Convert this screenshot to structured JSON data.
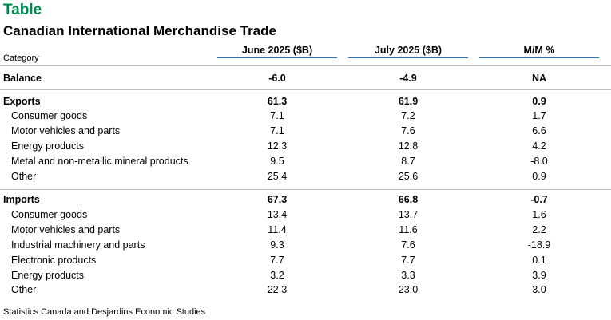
{
  "header": {
    "tag": "Table",
    "title": "Canadian International Merchandise Trade",
    "category_label": "Category"
  },
  "columns": [
    "June 2025 ($B)",
    "July 2025 ($B)",
    "M/M %"
  ],
  "rows": [
    {
      "label": "Balance",
      "june": "-6.0",
      "july": "-4.9",
      "mm": "NA",
      "bold": true
    },
    {
      "label": "Exports",
      "june": "61.3",
      "july": "61.9",
      "mm": "0.9",
      "bold": true
    },
    {
      "label": "Consumer goods",
      "june": "7.1",
      "july": "7.2",
      "mm": "1.7"
    },
    {
      "label": "Motor vehicles and parts",
      "june": "7.1",
      "july": "7.6",
      "mm": "6.6"
    },
    {
      "label": "Energy products",
      "june": "12.3",
      "july": "12.8",
      "mm": "4.2"
    },
    {
      "label": "Metal and non-metallic mineral products",
      "june": "9.5",
      "july": "8.7",
      "mm": "-8.0"
    },
    {
      "label": "Other",
      "june": "25.4",
      "july": "25.6",
      "mm": "0.9"
    },
    {
      "label": "Imports",
      "june": "67.3",
      "july": "66.8",
      "mm": "-0.7",
      "bold": true
    },
    {
      "label": "Consumer goods",
      "june": "13.4",
      "july": "13.7",
      "mm": "1.6"
    },
    {
      "label": "Motor vehicles and parts",
      "june": "11.4",
      "july": "11.6",
      "mm": "2.2"
    },
    {
      "label": "Industrial machinery and parts",
      "june": "9.3",
      "july": "7.6",
      "mm": "-18.9"
    },
    {
      "label": "Electronic products",
      "june": "7.7",
      "july": "7.7",
      "mm": "0.1"
    },
    {
      "label": "Energy products",
      "june": "3.2",
      "july": "3.3",
      "mm": "3.9"
    },
    {
      "label": "Other",
      "june": "22.3",
      "july": "23.0",
      "mm": "3.0"
    }
  ],
  "source": "Statistics Canada and Desjardins Economic Studies",
  "colors": {
    "tag": "#00874e",
    "header_rule": "#2e75b6",
    "row_rule": "#bfbfbf"
  }
}
